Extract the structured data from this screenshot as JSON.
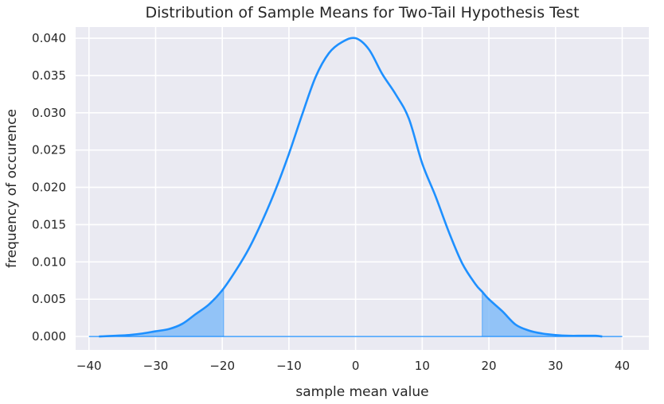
{
  "chart_data": {
    "type": "area",
    "title": "Distribution of Sample Means for Two-Tail Hypothesis Test",
    "xlabel": "sample mean value",
    "ylabel": "frequency of occurence",
    "xlim": [
      -42,
      44
    ],
    "ylim": [
      -0.0018,
      0.0415
    ],
    "x_ticks": [
      -40,
      -30,
      -20,
      -10,
      0,
      10,
      20,
      30,
      40
    ],
    "y_ticks": [
      0.0,
      0.005,
      0.01,
      0.015,
      0.02,
      0.025,
      0.03,
      0.035,
      0.04
    ],
    "y_tick_labels": [
      "0.000",
      "0.005",
      "0.010",
      "0.015",
      "0.020",
      "0.025",
      "0.030",
      "0.035",
      "0.040"
    ],
    "x_tick_labels": [
      "−40",
      "−30",
      "−20",
      "−10",
      "0",
      "10",
      "20",
      "30",
      "40"
    ],
    "grid": true,
    "background": "#eaeaf2",
    "grid_color": "#ffffff",
    "line_color": "#1e90ff",
    "fill_color": "#7cb9f7",
    "series": [
      {
        "values_x": [
          -38.5,
          -36,
          -34,
          -32,
          -30,
          -28,
          -26,
          -24,
          -22,
          -20,
          -18,
          -16,
          -14,
          -12,
          -10,
          -8,
          -6,
          -4,
          -2,
          0,
          2,
          4,
          6,
          8,
          10,
          12,
          14,
          16,
          18,
          19,
          20,
          22,
          24,
          26,
          28,
          30,
          32,
          34,
          36,
          37
        ],
        "values_y": [
          0.0,
          0.0001,
          0.0002,
          0.0004,
          0.0007,
          0.001,
          0.0017,
          0.003,
          0.0043,
          0.0062,
          0.0088,
          0.0118,
          0.0155,
          0.0197,
          0.0245,
          0.0298,
          0.0348,
          0.038,
          0.0395,
          0.04,
          0.0385,
          0.0352,
          0.0325,
          0.0292,
          0.0232,
          0.0188,
          0.014,
          0.0098,
          0.007,
          0.006,
          0.005,
          0.0034,
          0.0016,
          0.0008,
          0.0004,
          0.0002,
          0.0001,
          0.0001,
          0.0001,
          0.0
        ]
      }
    ],
    "shaded_regions": [
      [
        -38.5,
        -19.8
      ],
      [
        19.0,
        37
      ]
    ],
    "baseline_segment": [
      -40,
      40
    ]
  }
}
